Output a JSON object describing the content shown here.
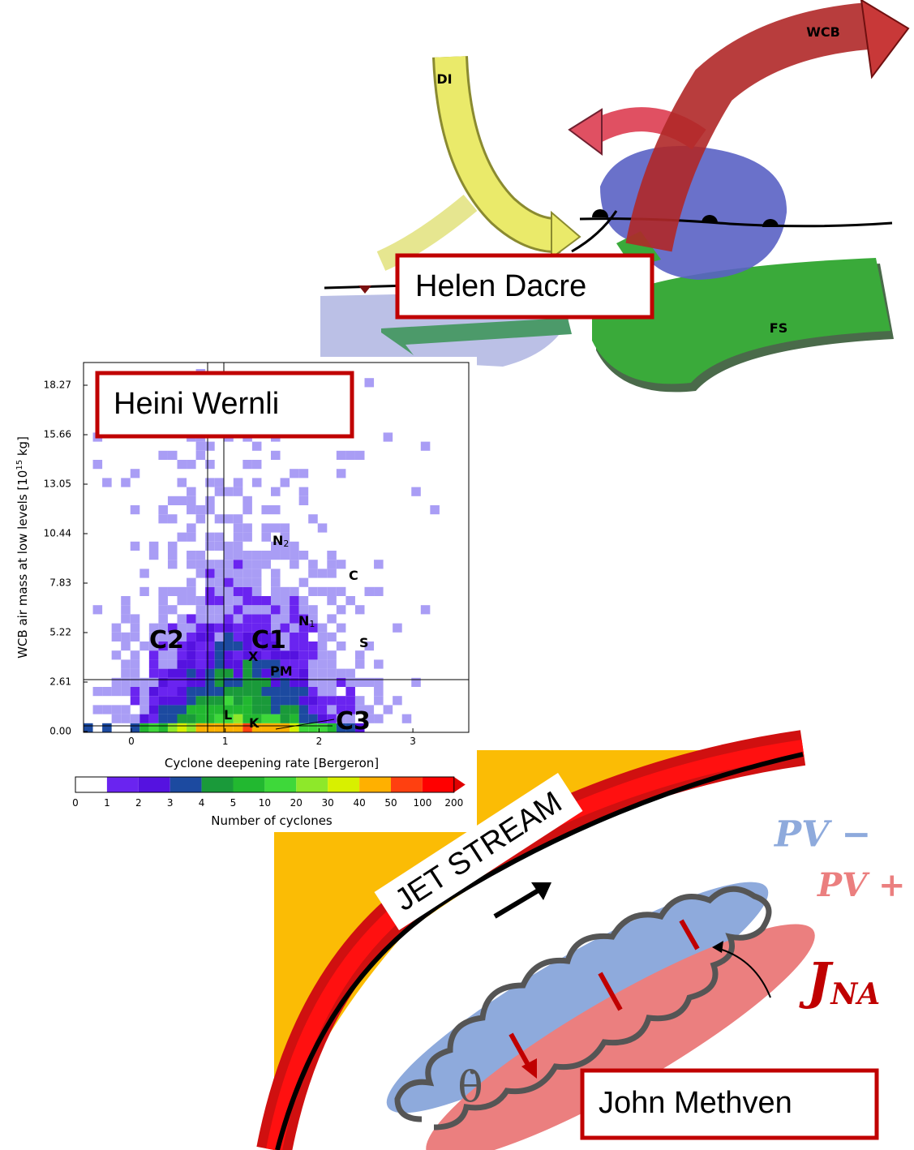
{
  "panels": {
    "conveyor_belts": {
      "wcb": "WCB",
      "di": "DI",
      "fs": "FS",
      "name": "Helen Dacre"
    },
    "histogram": {
      "name": "Heini Wernli",
      "x_label": "Cyclone deepening rate [Bergeron]",
      "y_label": [
        "WCB air mass at low levels [10",
        "15",
        " kg]"
      ],
      "x_ticks": [
        "0",
        "1",
        "2",
        "3"
      ],
      "y_ticks": [
        "18.27",
        "15.66",
        "13.05",
        "10.44",
        "7.83",
        "5.22",
        "2.61",
        "0.00"
      ],
      "colorbar_ticks": [
        "0",
        "1",
        "2",
        "3",
        "4",
        "5",
        "10",
        "20",
        "30",
        "40",
        "50",
        "100",
        "200"
      ],
      "colorbar_label": "Number of cyclones",
      "annotations": [
        {
          "text": "N",
          "sub": "2"
        },
        {
          "text": "C"
        },
        {
          "text": "N",
          "sub": "1"
        },
        {
          "text": "C2"
        },
        {
          "text": "C1"
        },
        {
          "text": "S"
        },
        {
          "text": "X"
        },
        {
          "text": "PM"
        },
        {
          "text": "L"
        },
        {
          "text": "K"
        },
        {
          "text": "C3"
        }
      ]
    },
    "jet": {
      "jet_label": "JET STREAM",
      "pv_minus": "PV −",
      "pv_plus": "PV +",
      "j": "J",
      "j_sub": "NA",
      "theta": "θ̇",
      "name": "John Methven"
    }
  }
}
